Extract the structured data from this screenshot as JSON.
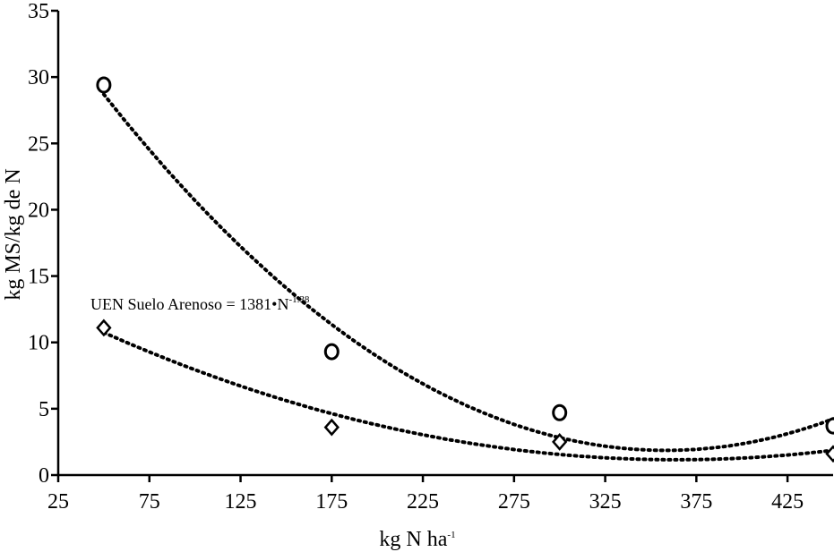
{
  "chart_data": {
    "type": "scatter",
    "xlabel": "kg N ha",
    "xlabel_sup": "-1",
    "ylabel": "kg MS/kg de N",
    "xlim": [
      25,
      450
    ],
    "ylim": [
      0,
      35
    ],
    "xticks": [
      25,
      75,
      125,
      175,
      225,
      275,
      325,
      375,
      425
    ],
    "yticks": [
      0,
      5,
      10,
      15,
      20,
      25,
      30,
      35
    ],
    "grid": false,
    "annotation": {
      "text": "UEN Suelo Arenoso = 1381•N",
      "sup": "-1.38"
    },
    "series": [
      {
        "marker": "circle",
        "x": [
          50,
          175,
          300,
          450
        ],
        "y": [
          29.4,
          9.3,
          4.7,
          3.7
        ],
        "trend": {
          "type": "polynomial",
          "x_range": [
            50,
            450
          ]
        }
      },
      {
        "marker": "diamond",
        "x": [
          50,
          175,
          300,
          450
        ],
        "y": [
          11.1,
          3.6,
          2.5,
          1.6
        ],
        "trend": {
          "type": "polynomial",
          "x_range": [
            50,
            450
          ]
        }
      }
    ]
  }
}
